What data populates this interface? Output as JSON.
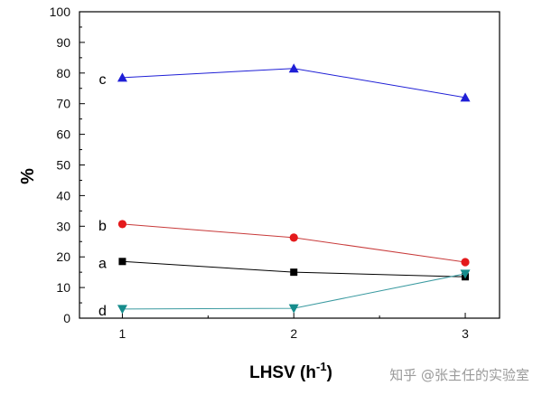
{
  "chart_data": {
    "type": "line",
    "title": "",
    "xlabel": "LHSV (h",
    "xlabel_sup": "-1",
    "xlabel_suffix": ")",
    "ylabel": "%",
    "x": [
      1,
      2,
      3
    ],
    "xlim": [
      0.75,
      3.2
    ],
    "ylim": [
      0,
      100
    ],
    "xticks": [
      "1",
      "2",
      "3"
    ],
    "yticks": [
      "0",
      "10",
      "20",
      "30",
      "40",
      "50",
      "60",
      "70",
      "80",
      "90",
      "100"
    ],
    "grid": false,
    "series": [
      {
        "name": "a",
        "values": [
          18.5,
          15.0,
          13.5
        ],
        "color": "#000000",
        "marker": "square"
      },
      {
        "name": "b",
        "values": [
          30.7,
          26.3,
          18.3
        ],
        "color": "#e41a1c",
        "line_color": "#c83a3a",
        "marker": "circle"
      },
      {
        "name": "c",
        "values": [
          78.5,
          81.5,
          72.0
        ],
        "color": "#1f1fd6",
        "marker": "triangle-up"
      },
      {
        "name": "d",
        "values": [
          3.0,
          3.2,
          14.5
        ],
        "color": "#168c8c",
        "line_color": "#3a9aa0",
        "marker": "triangle-down"
      }
    ]
  },
  "watermark": "知乎 @张主任的实验室"
}
